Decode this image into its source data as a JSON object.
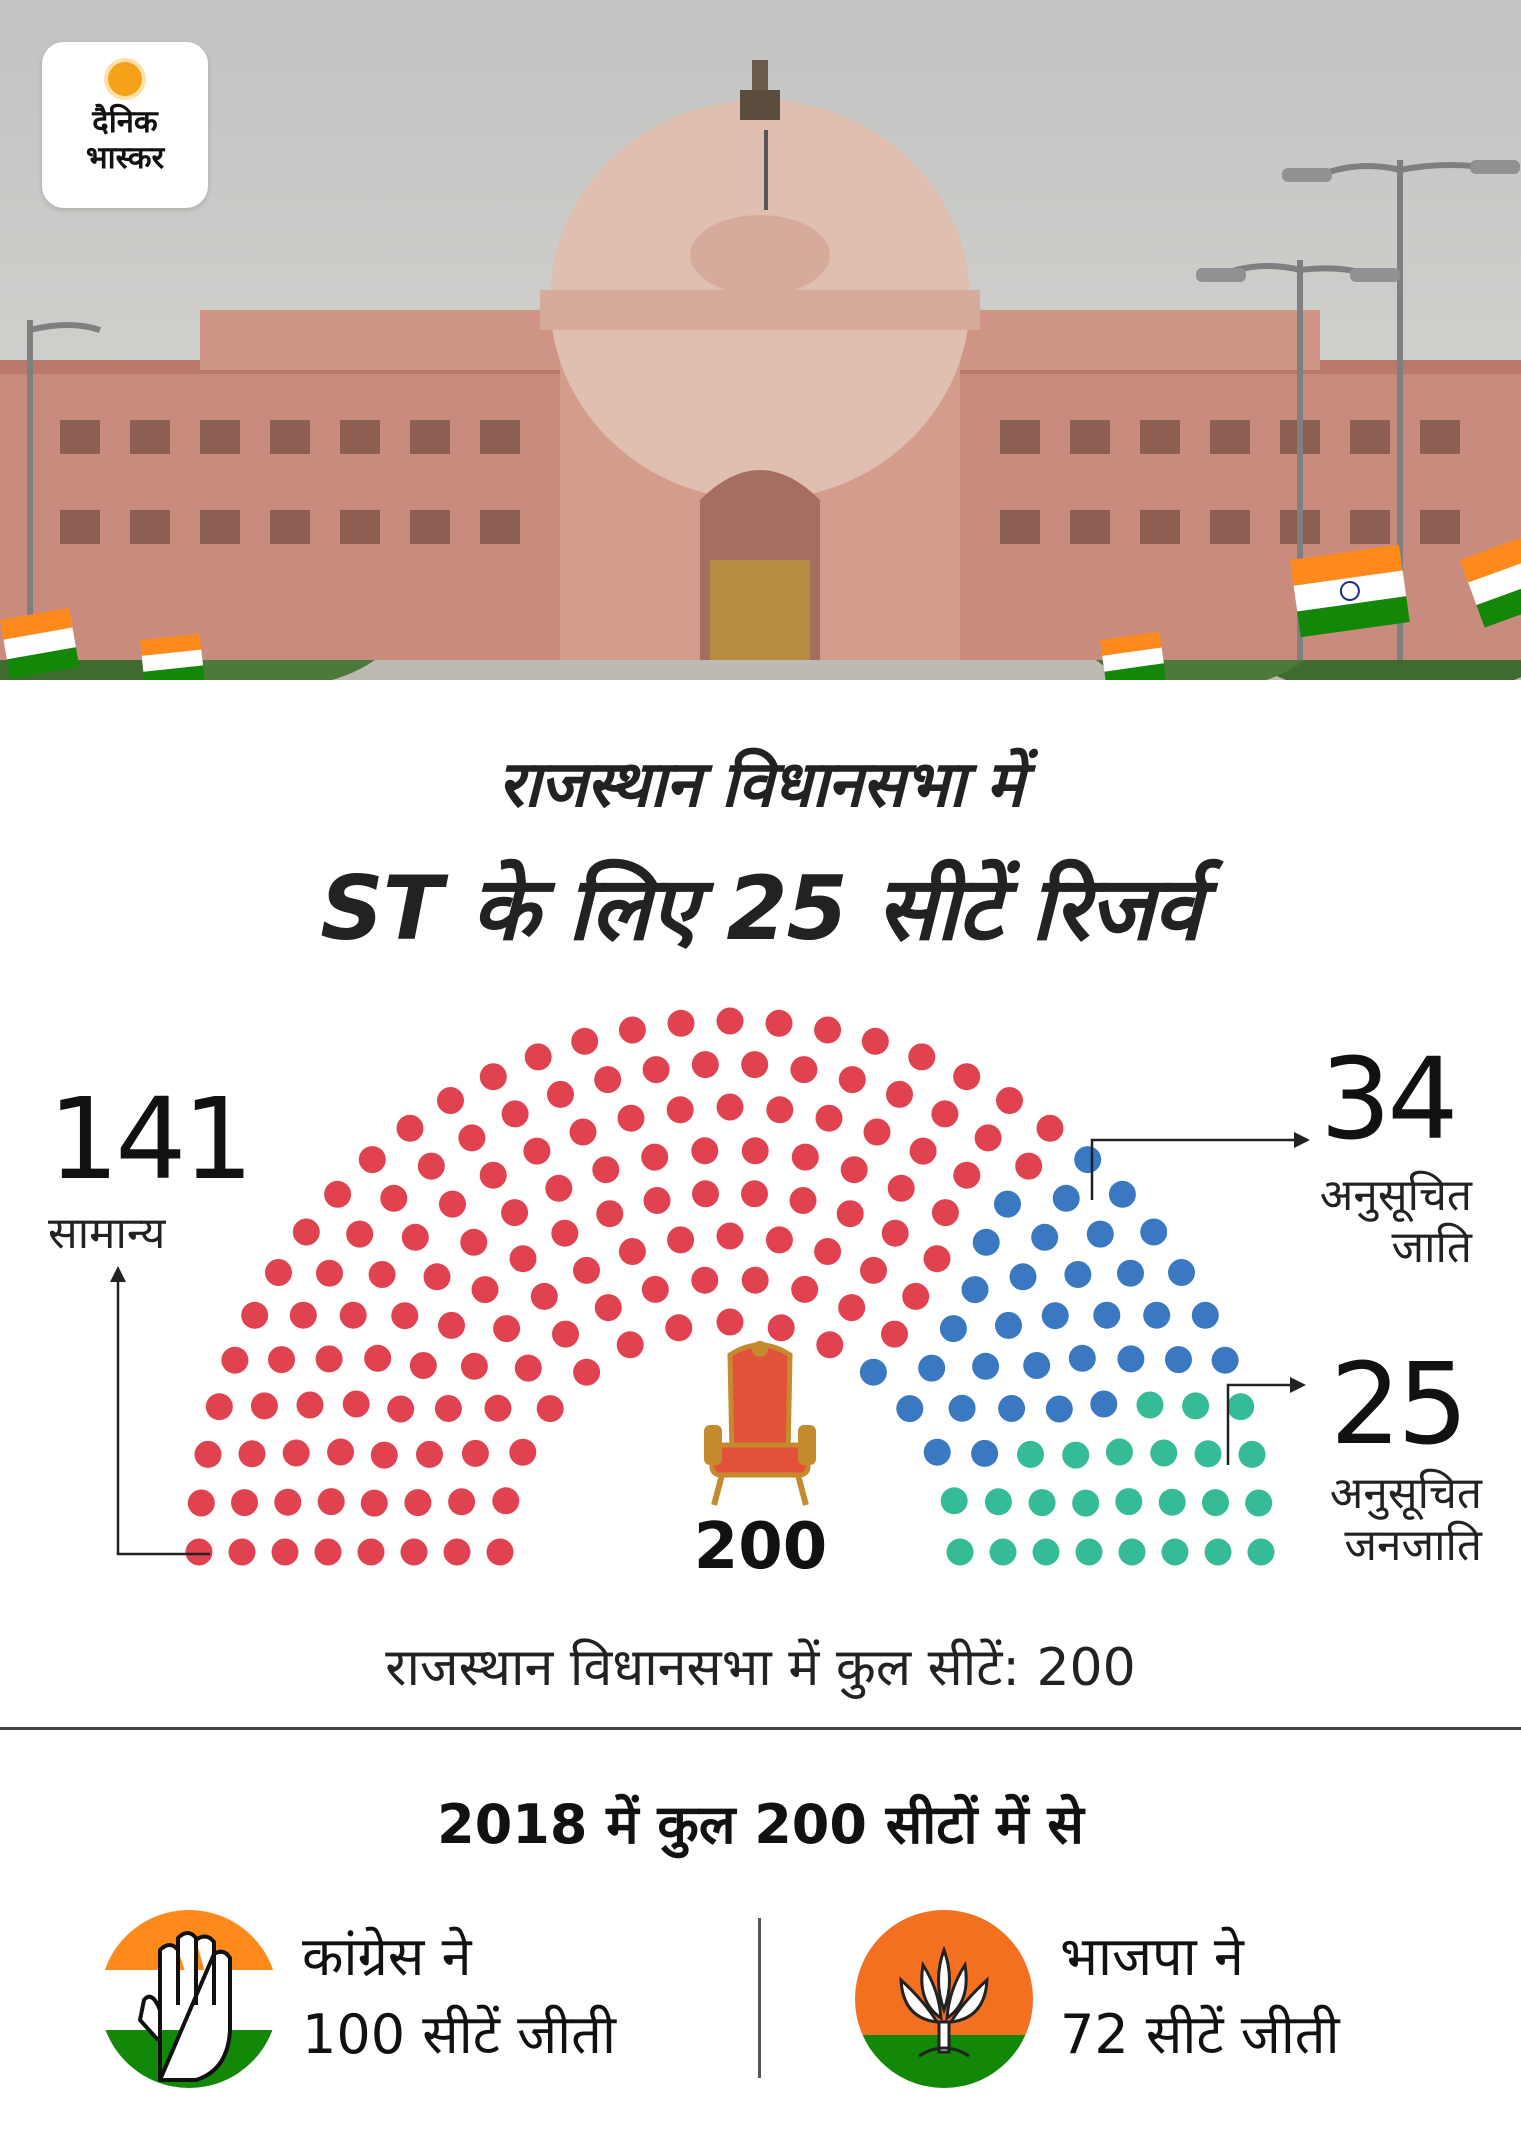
{
  "photo": {
    "alt_subject": "assembly-building-photo",
    "colors": {
      "sky": "#c9c9c7",
      "building": "#c98b7e",
      "dome": "#e0bfb0",
      "trees": "#3f6b30",
      "saffron": "#ff8a1c",
      "green": "#138808"
    }
  },
  "logo": {
    "brand": "दैनिक\nभास्कर"
  },
  "headline": {
    "line1": "राजस्थान विधानसभा में",
    "line2": "ST के लिए 25 सीटें रिजर्व"
  },
  "chart_data": {
    "type": "parliament",
    "total": 200,
    "center_label": "200",
    "series": [
      {
        "value": 141,
        "label": "सामान्य",
        "color": "#e0434f"
      },
      {
        "value": 34,
        "label": "अनुसूचित जाति",
        "label_lines": [
          "अनुसूचित",
          "जाति"
        ],
        "color": "#3a78c2"
      },
      {
        "value": 25,
        "label": "अनुसूचित जनजाति",
        "label_lines": [
          "अनुसूचित",
          "जनजाति"
        ],
        "color": "#35bb96"
      }
    ]
  },
  "summary": {
    "total_line": "राजस्थान विधानसभा में कुल सीटें: 200"
  },
  "results": {
    "title": "2018 में कुल 200 सीटों में से",
    "parties": [
      {
        "icon": "congress-hand-icon",
        "line1": "कांग्रेस ने",
        "line2": "100 सीटें जीती",
        "colors": {
          "top": "#ff8a1c",
          "mid": "#ffffff",
          "bottom": "#138808"
        }
      },
      {
        "icon": "bjp-lotus-icon",
        "line1": "भाजपा ने",
        "line2": "72 सीटें जीती",
        "colors": {
          "top": "#f37021",
          "bottom": "#138808"
        }
      }
    ]
  }
}
